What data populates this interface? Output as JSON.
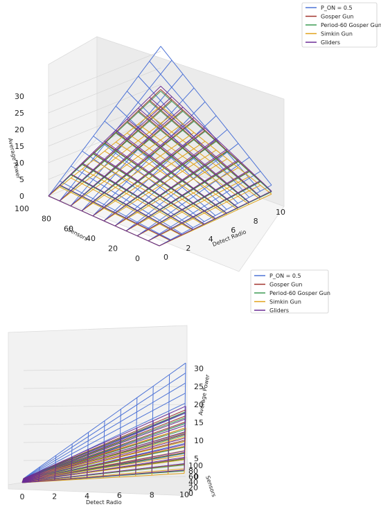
{
  "chart_data": [
    {
      "type": "surface-3d-wireframe",
      "view": "elevated",
      "xlabel": "Detect Radio",
      "ylabel": "Sensors",
      "zlabel": "Average Power",
      "x_ticks": [
        "0",
        "2",
        "4",
        "6",
        "8",
        "10"
      ],
      "y_ticks": [
        "0",
        "20",
        "40",
        "60",
        "80",
        "100"
      ],
      "z_ticks": [
        "0",
        "5",
        "10",
        "15",
        "20",
        "25",
        "30"
      ],
      "xlim": [
        0,
        10
      ],
      "ylim": [
        0,
        100
      ],
      "zlim": [
        0,
        32
      ],
      "grid": true,
      "legend_position": "top-right",
      "series": [
        {
          "name": "P_ON = 0.5",
          "color": "#4c72d6",
          "max_value": 31.5
        },
        {
          "name": "Gosper Gun",
          "color": "#a0322c",
          "max_value": 18.5
        },
        {
          "name": "Period-60 Gosper Gun",
          "color": "#3c9a52",
          "max_value": 18.0
        },
        {
          "name": "Simkin Gun",
          "color": "#e0a21a",
          "max_value": 13.5
        },
        {
          "name": "Gliders",
          "color": "#6a2c96",
          "max_value": 19.5
        }
      ]
    },
    {
      "type": "surface-3d-wireframe",
      "view": "low-angle",
      "xlabel": "Detect Radio",
      "ylabel": "Sensors",
      "zlabel": "Average Power",
      "x_ticks": [
        "0",
        "2",
        "4",
        "6",
        "8",
        "10"
      ],
      "y_ticks": [
        "0",
        "20",
        "40",
        "60",
        "80",
        "100"
      ],
      "z_ticks": [
        "0",
        "5",
        "10",
        "15",
        "20",
        "25",
        "30"
      ],
      "xlim": [
        0,
        10
      ],
      "ylim": [
        0,
        100
      ],
      "zlim": [
        0,
        32
      ],
      "grid": true,
      "legend_position": "top-right",
      "series": [
        {
          "name": "P_ON = 0.5",
          "color": "#4c72d6",
          "max_value": 31.5
        },
        {
          "name": "Gosper Gun",
          "color": "#a0322c",
          "max_value": 18.5
        },
        {
          "name": "Period-60 Gosper Gun",
          "color": "#3c9a52",
          "max_value": 18.0
        },
        {
          "name": "Simkin Gun",
          "color": "#e0a21a",
          "max_value": 13.5
        },
        {
          "name": "Gliders",
          "color": "#6a2c96",
          "max_value": 19.5
        }
      ]
    }
  ]
}
